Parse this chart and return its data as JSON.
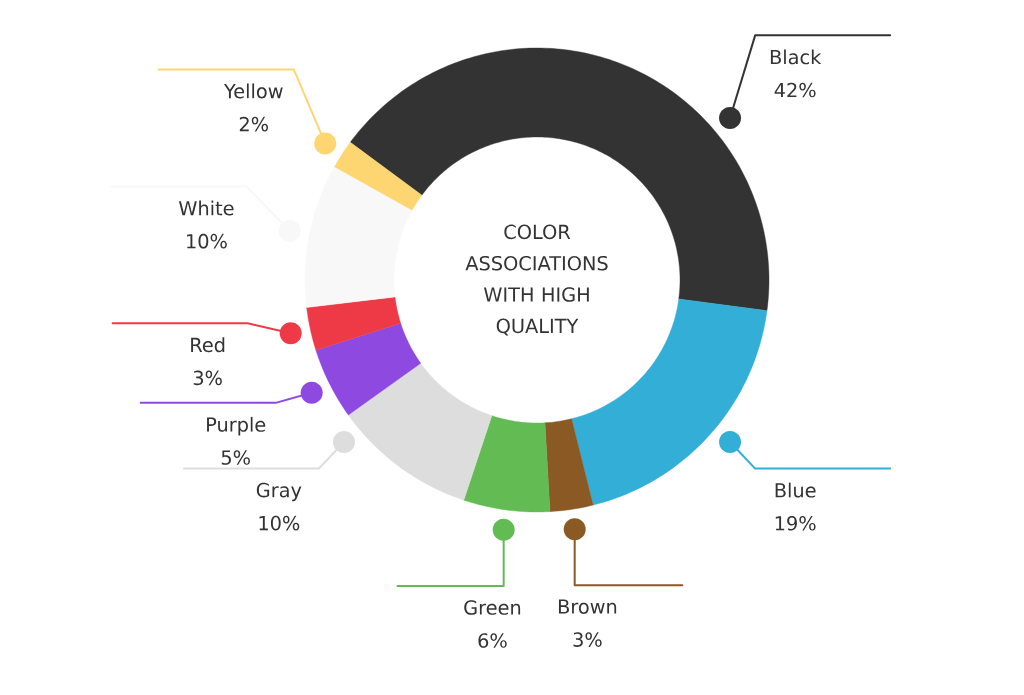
{
  "chart_data": {
    "type": "donut",
    "title": "COLOR ASSOCIATIONS WITH HIGH QUALITY",
    "categories": [
      "Black",
      "Blue",
      "Brown",
      "Green",
      "Gray",
      "Purple",
      "Red",
      "White",
      "Yellow"
    ],
    "values": [
      42,
      19,
      3,
      6,
      10,
      5,
      3,
      10,
      2
    ],
    "colors": [
      "#333333",
      "#33aed6",
      "#8b5a24",
      "#62bb53",
      "#dddddd",
      "#8d49e0",
      "#ee3a47",
      "#f8f8f8",
      "#fdd672"
    ],
    "value_labels": [
      "42%",
      "19%",
      "3%",
      "6%",
      "10%",
      "5%",
      "3%",
      "10%",
      "2%"
    ]
  }
}
